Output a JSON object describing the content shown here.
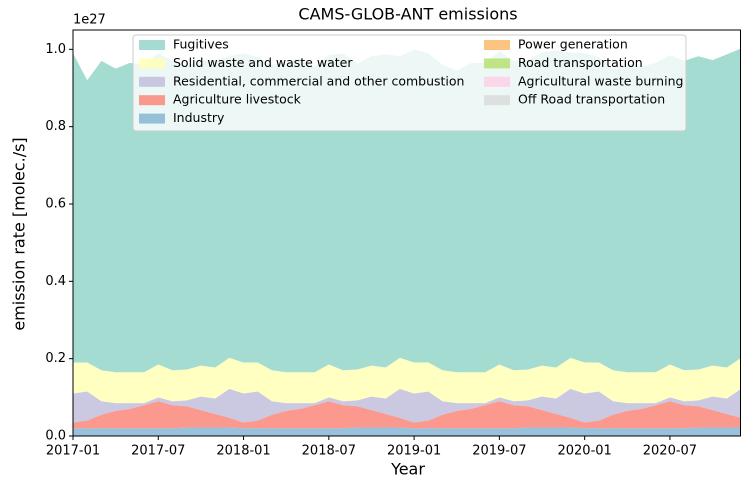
{
  "chart_data": {
    "type": "stacked_area",
    "title": "CAMS-GLOB-ANT emissions",
    "x_label": "Year",
    "y_label": "emission rate [molec./s]",
    "y_offset_label": "1e27",
    "x": [
      "2017-01",
      "2017-02",
      "2017-03",
      "2017-04",
      "2017-05",
      "2017-06",
      "2017-07",
      "2017-08",
      "2017-09",
      "2017-10",
      "2017-11",
      "2017-12",
      "2018-01",
      "2018-02",
      "2018-03",
      "2018-04",
      "2018-05",
      "2018-06",
      "2018-07",
      "2018-08",
      "2018-09",
      "2018-10",
      "2018-11",
      "2018-12",
      "2019-01",
      "2019-02",
      "2019-03",
      "2019-04",
      "2019-05",
      "2019-06",
      "2019-07",
      "2019-08",
      "2019-09",
      "2019-10",
      "2019-11",
      "2019-12",
      "2020-01",
      "2020-02",
      "2020-03",
      "2020-04",
      "2020-05",
      "2020-06",
      "2020-07",
      "2020-08",
      "2020-09",
      "2020-10",
      "2020-11",
      "2020-12"
    ],
    "xlim": [
      "2017-01",
      "2020-12"
    ],
    "xticks": [
      "2017-01",
      "2017-07",
      "2018-01",
      "2018-07",
      "2019-01",
      "2019-07",
      "2020-01",
      "2020-07"
    ],
    "ylim": [
      0,
      1.05
    ],
    "yticks": [
      {
        "value": 0,
        "label": "0.0"
      },
      0.2,
      0.4,
      0.6,
      0.8,
      {
        "value": 1,
        "label": "1.0"
      }
    ],
    "series": [
      {
        "name": "Fugitives",
        "color": "#8dd3c7",
        "values": [
          0.8,
          0.73,
          0.8,
          0.785,
          0.8,
          0.795,
          0.805,
          0.8,
          0.785,
          0.79,
          0.795,
          0.78,
          0.8,
          0.79,
          0.79,
          0.8,
          0.81,
          0.79,
          0.8,
          0.82,
          0.79,
          0.8,
          0.81,
          0.78,
          0.81,
          0.8,
          0.79,
          0.78,
          0.8,
          0.8,
          0.81,
          0.8,
          0.8,
          0.81,
          0.82,
          0.79,
          0.8,
          0.79,
          0.78,
          0.8,
          0.79,
          0.8,
          0.8,
          0.8,
          0.81,
          0.79,
          0.81,
          0.8
        ]
      },
      {
        "name": "Solid waste and waste water",
        "color": "#ffffb3",
        "values": [
          0.08,
          0.075,
          0.08,
          0.08,
          0.08,
          0.08,
          0.085,
          0.08,
          0.08,
          0.08,
          0.08,
          0.08,
          0.08,
          0.075,
          0.08,
          0.08,
          0.08,
          0.08,
          0.085,
          0.08,
          0.08,
          0.08,
          0.08,
          0.08,
          0.08,
          0.075,
          0.08,
          0.08,
          0.08,
          0.08,
          0.085,
          0.08,
          0.08,
          0.08,
          0.08,
          0.08,
          0.08,
          0.075,
          0.08,
          0.08,
          0.08,
          0.08,
          0.085,
          0.08,
          0.08,
          0.08,
          0.08,
          0.08
        ]
      },
      {
        "name": "Residential, commercial and other combustion",
        "color": "#bebada",
        "values": [
          0.075,
          0.075,
          0.035,
          0.02,
          0.015,
          0.005,
          0.01,
          0.01,
          0.015,
          0.035,
          0.04,
          0.075,
          0.075,
          0.075,
          0.035,
          0.02,
          0.015,
          0.005,
          0.01,
          0.01,
          0.015,
          0.035,
          0.04,
          0.075,
          0.075,
          0.075,
          0.035,
          0.02,
          0.015,
          0.005,
          0.01,
          0.01,
          0.015,
          0.035,
          0.04,
          0.075,
          0.075,
          0.075,
          0.035,
          0.02,
          0.015,
          0.005,
          0.01,
          0.01,
          0.015,
          0.035,
          0.04,
          0.075
        ]
      },
      {
        "name": "Agriculture livestock",
        "color": "#fb8072",
        "values": [
          0.015,
          0.02,
          0.035,
          0.045,
          0.05,
          0.06,
          0.07,
          0.06,
          0.055,
          0.045,
          0.035,
          0.025,
          0.015,
          0.02,
          0.035,
          0.045,
          0.05,
          0.06,
          0.07,
          0.06,
          0.055,
          0.045,
          0.035,
          0.025,
          0.015,
          0.02,
          0.035,
          0.045,
          0.05,
          0.06,
          0.07,
          0.06,
          0.055,
          0.045,
          0.035,
          0.025,
          0.015,
          0.02,
          0.035,
          0.045,
          0.05,
          0.06,
          0.07,
          0.06,
          0.055,
          0.045,
          0.035,
          0.025
        ]
      },
      {
        "name": "Industry",
        "color": "#80b1d3",
        "values": [
          0.02,
          0.02,
          0.02,
          0.02,
          0.02,
          0.02,
          0.02,
          0.02,
          0.022,
          0.022,
          0.022,
          0.022,
          0.02,
          0.02,
          0.02,
          0.02,
          0.02,
          0.02,
          0.02,
          0.02,
          0.022,
          0.022,
          0.022,
          0.022,
          0.02,
          0.02,
          0.02,
          0.02,
          0.02,
          0.02,
          0.02,
          0.02,
          0.022,
          0.022,
          0.022,
          0.022,
          0.02,
          0.02,
          0.02,
          0.02,
          0.02,
          0.02,
          0.02,
          0.02,
          0.022,
          0.022,
          0.022,
          0.022
        ]
      },
      {
        "name": "Power generation",
        "color": "#fdb462",
        "values": [
          0,
          0,
          0,
          0,
          0,
          0,
          0,
          0,
          0,
          0,
          0,
          0,
          0,
          0,
          0,
          0,
          0,
          0,
          0,
          0,
          0,
          0,
          0,
          0,
          0,
          0,
          0,
          0,
          0,
          0,
          0,
          0,
          0,
          0,
          0,
          0,
          0,
          0,
          0,
          0,
          0,
          0,
          0,
          0,
          0,
          0,
          0,
          0
        ]
      },
      {
        "name": "Road transportation",
        "color": "#b3de69",
        "values": [
          0,
          0,
          0,
          0,
          0,
          0,
          0,
          0,
          0,
          0,
          0,
          0,
          0,
          0,
          0,
          0,
          0,
          0,
          0,
          0,
          0,
          0,
          0,
          0,
          0,
          0,
          0,
          0,
          0,
          0,
          0,
          0,
          0,
          0,
          0,
          0,
          0,
          0,
          0,
          0,
          0,
          0,
          0,
          0,
          0,
          0,
          0,
          0
        ]
      },
      {
        "name": "Agricultural waste burning",
        "color": "#fccde5",
        "values": [
          0,
          0,
          0,
          0,
          0,
          0,
          0,
          0,
          0,
          0,
          0,
          0,
          0,
          0,
          0,
          0,
          0,
          0,
          0,
          0,
          0,
          0,
          0,
          0,
          0,
          0,
          0,
          0,
          0,
          0,
          0,
          0,
          0,
          0,
          0,
          0,
          0,
          0,
          0,
          0,
          0,
          0,
          0,
          0,
          0,
          0,
          0,
          0
        ]
      },
      {
        "name": "Off Road transportation",
        "color": "#d9d9d9",
        "values": [
          0,
          0,
          0,
          0,
          0,
          0,
          0,
          0,
          0,
          0,
          0,
          0,
          0,
          0,
          0,
          0,
          0,
          0,
          0,
          0,
          0,
          0,
          0,
          0,
          0,
          0,
          0,
          0,
          0,
          0,
          0,
          0,
          0,
          0,
          0,
          0,
          0,
          0,
          0,
          0,
          0,
          0,
          0,
          0,
          0,
          0,
          0,
          0
        ]
      }
    ],
    "legend": "upper center",
    "grid": false
  }
}
